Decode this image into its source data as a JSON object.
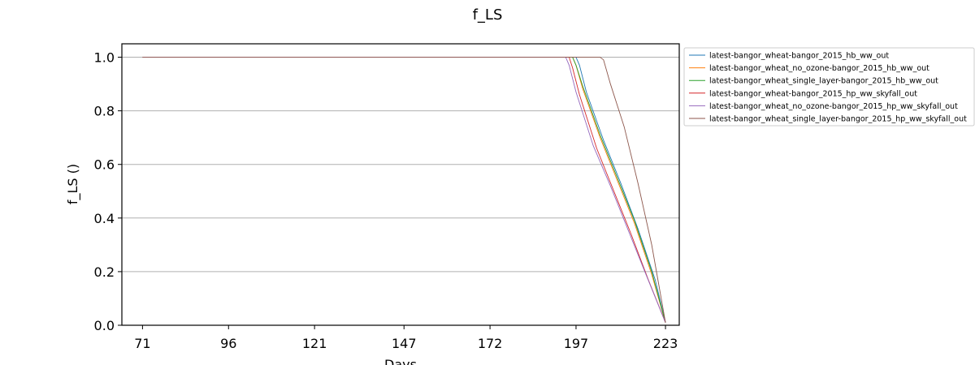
{
  "chart_data": {
    "type": "line",
    "title": "f_LS",
    "xlabel": "Days",
    "ylabel": "f_LS ()",
    "xlim": [
      65,
      227
    ],
    "ylim": [
      0.0,
      1.05
    ],
    "xticks": [
      71,
      96,
      121,
      147,
      172,
      197,
      223
    ],
    "xtick_labels": [
      "71",
      "96",
      "121",
      "147",
      "172",
      "197",
      "223"
    ],
    "yticks": [
      0.0,
      0.2,
      0.4,
      0.6,
      0.8,
      1.0
    ],
    "ytick_labels": [
      "0.0",
      "0.2",
      "0.4",
      "0.6",
      "0.8",
      "1.0"
    ],
    "grid": "horizontal",
    "legend_position": "outside-upper-right",
    "series": [
      {
        "name": "latest-bangor_wheat-bangor_2015_hb_ww_out",
        "color": "#1f77b4",
        "x": [
          71,
          197,
          198,
          200,
          205,
          210,
          215,
          220,
          223
        ],
        "y": [
          1.0,
          1.0,
          0.97,
          0.87,
          0.69,
          0.53,
          0.36,
          0.17,
          0.01
        ]
      },
      {
        "name": "latest-bangor_wheat_no_ozone-bangor_2015_hb_ww_out",
        "color": "#ff7f0e",
        "x": [
          71,
          196,
          197,
          199,
          204,
          209,
          214,
          219,
          223
        ],
        "y": [
          1.0,
          1.0,
          0.97,
          0.88,
          0.7,
          0.54,
          0.38,
          0.19,
          0.01
        ]
      },
      {
        "name": "latest-bangor_wheat_single_layer-bangor_2015_hb_ww_out",
        "color": "#2ca02c",
        "x": [
          71,
          196,
          197,
          199,
          204,
          209,
          214,
          219,
          223
        ],
        "y": [
          1.0,
          1.0,
          0.97,
          0.89,
          0.71,
          0.55,
          0.39,
          0.2,
          0.01
        ]
      },
      {
        "name": "latest-bangor_wheat-bangor_2015_hp_ww_skyfall_out",
        "color": "#d62728",
        "x": [
          71,
          195,
          196,
          198,
          203,
          208,
          213,
          218,
          223
        ],
        "y": [
          1.0,
          1.0,
          0.96,
          0.86,
          0.66,
          0.5,
          0.34,
          0.17,
          0.01
        ]
      },
      {
        "name": "latest-bangor_wheat_no_ozone-bangor_2015_hp_ww_skyfall_out",
        "color": "#9467bd",
        "x": [
          71,
          194,
          195,
          197,
          202,
          207,
          212,
          217,
          223
        ],
        "y": [
          1.0,
          1.0,
          0.97,
          0.87,
          0.67,
          0.52,
          0.36,
          0.2,
          0.01
        ]
      },
      {
        "name": "latest-bangor_wheat_single_layer-bangor_2015_hp_ww_skyfall_out",
        "color": "#8c564b",
        "x": [
          71,
          204,
          205,
          207,
          211,
          215,
          219,
          223
        ],
        "y": [
          1.0,
          1.0,
          0.99,
          0.9,
          0.74,
          0.53,
          0.3,
          0.01
        ]
      }
    ]
  }
}
